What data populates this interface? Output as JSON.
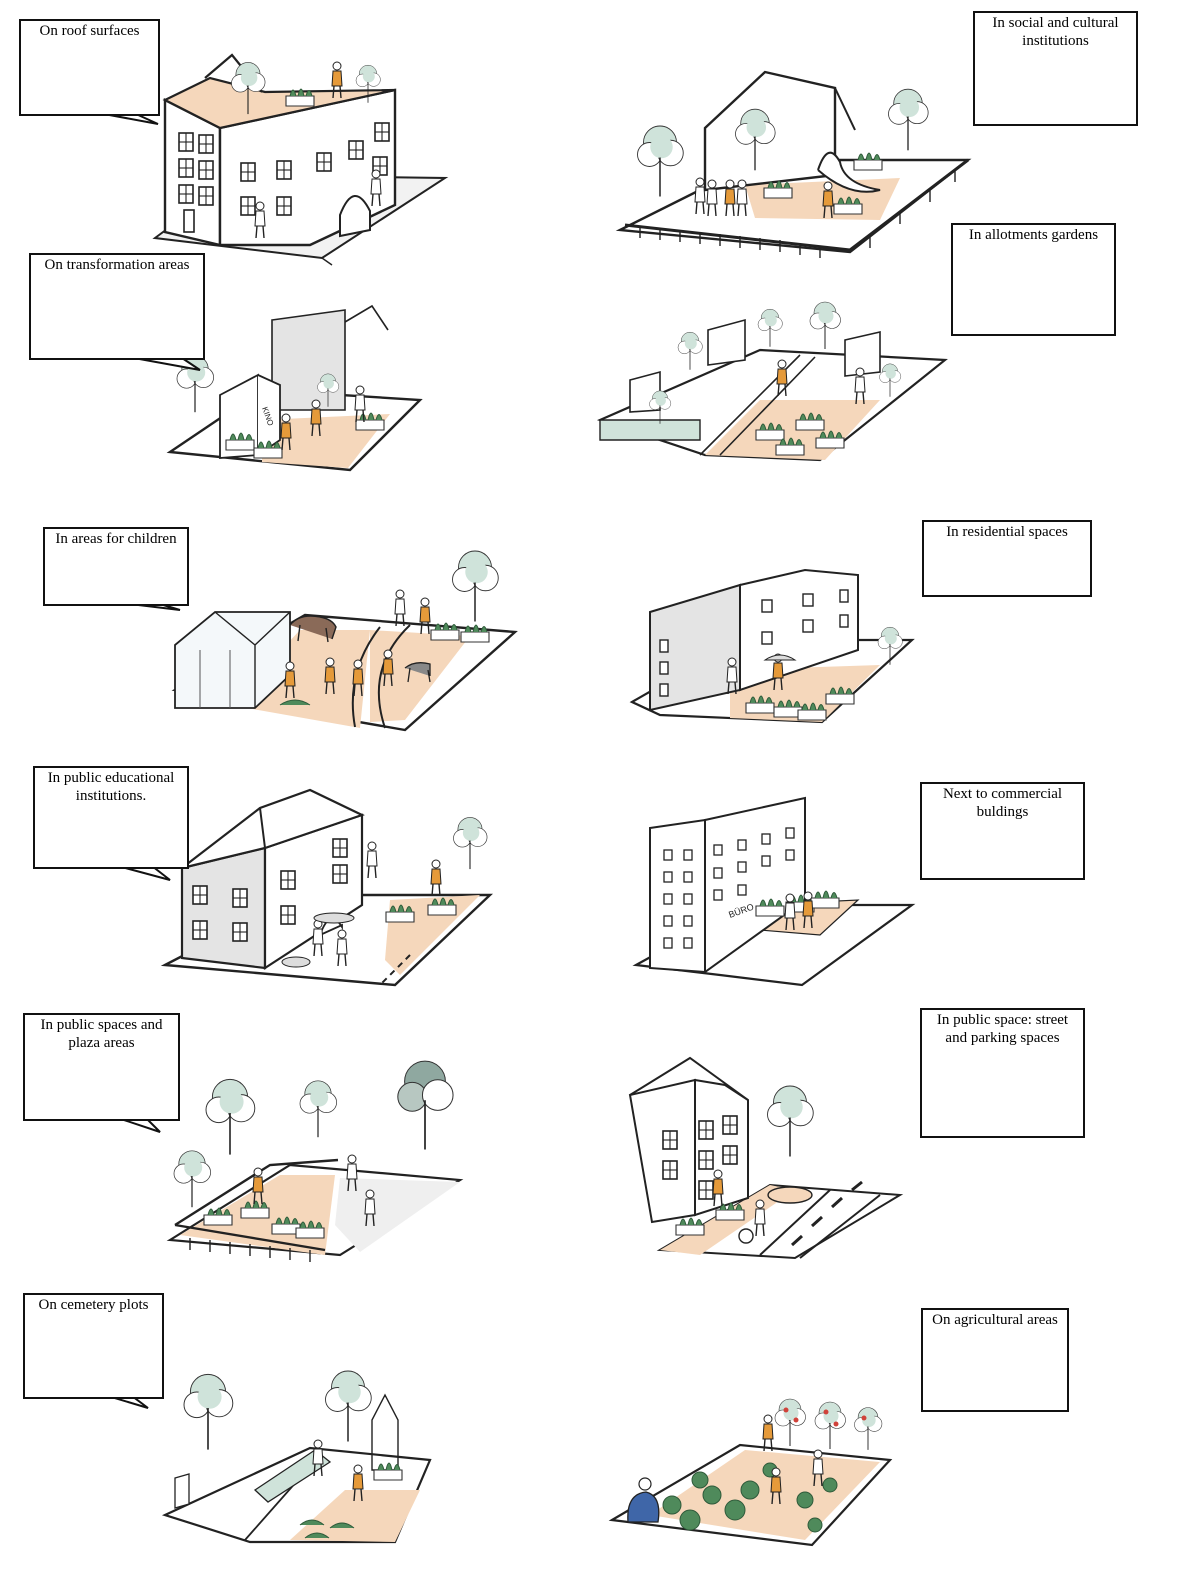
{
  "labels": {
    "roof": "On roof surfaces",
    "social": "In social and cultural institutions",
    "transformation": "On transformation areas",
    "allotments": "In allotments gardens",
    "children": "In areas for children",
    "residential": "In residential spaces",
    "educational": "In public educational institutions.",
    "commercial": "Next to commercial buldings",
    "plaza": "In public spaces and plaza areas",
    "street": "In public space: street and parking spaces",
    "cemetery": "On cemetery plots",
    "agricultural": "On agricultural areas"
  },
  "signs": {
    "kino": "KINO",
    "buro": "BÜRO"
  },
  "colors": {
    "ink": "#222222",
    "sand": "#f5d7bb",
    "tree_green": "#cfe3da",
    "tree_dark": "#8fa8a0",
    "plant": "#4f8a5b",
    "wall_grey": "#e4e4e4",
    "accent_orange": "#e59a3a",
    "accent_red": "#d0423a",
    "accent_blue": "#3f66a8"
  }
}
